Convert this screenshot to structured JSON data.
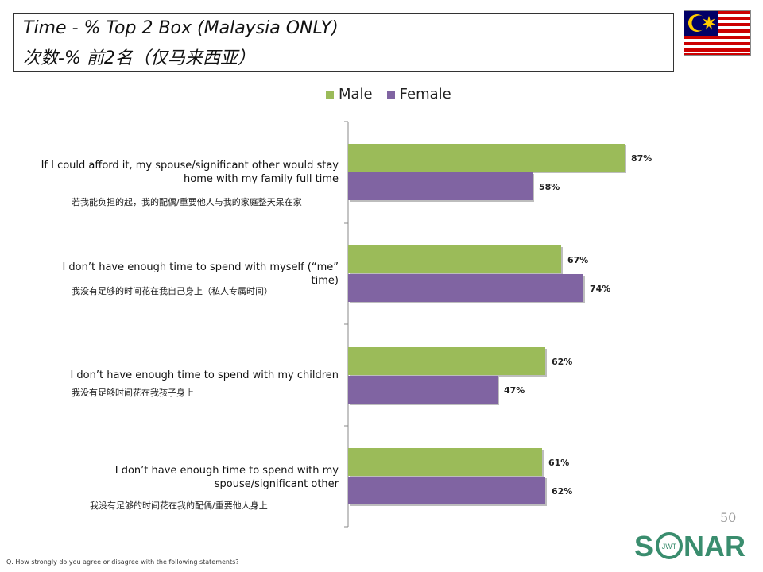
{
  "header": {
    "title_en": "Time - % Top 2 Box (Malaysia ONLY)",
    "title_zh": "次数-% 前2名（仅马来西亚）"
  },
  "flag": {
    "icon": "malaysia-flag-icon"
  },
  "legend": {
    "male": {
      "label": "Male",
      "color": "#9BBB59"
    },
    "female": {
      "label": "Female",
      "color": "#8064A2"
    }
  },
  "chart_data": {
    "type": "bar",
    "orientation": "horizontal",
    "categories": [
      "If I could afford it, my spouse/significant other would stay home with my family full time",
      "I don’t have enough time to spend with myself (“me” time)",
      "I don’t have enough time to spend with my children",
      "I don’t have enough time to spend with my spouse/significant other"
    ],
    "categories_zh": [
      "若我能负担的起，我的配偶/重要他人与我的家庭整天呆在家",
      "我没有足够的时间花在我自己身上（私人专属时间）",
      "我没有足够时间花在我孩子身上",
      "我没有足够的时间花在我的配偶/重要他人身上"
    ],
    "series": [
      {
        "name": "Male",
        "color": "#9BBB59",
        "values": [
          87,
          67,
          62,
          61
        ],
        "labels": [
          "87%",
          "67%",
          "62%",
          "61%"
        ]
      },
      {
        "name": "Female",
        "color": "#8064A2",
        "values": [
          58,
          74,
          47,
          62
        ],
        "labels": [
          "58%",
          "74%",
          "47%",
          "62%"
        ]
      }
    ],
    "xlim": [
      0,
      100
    ],
    "grid": false,
    "legend_position": "top"
  },
  "footer": {
    "page_number": "50",
    "logo_text": "SONAR",
    "logo_sub": "JWT",
    "question": "Q. How strongly do you agree or disagree with the following statements?"
  }
}
